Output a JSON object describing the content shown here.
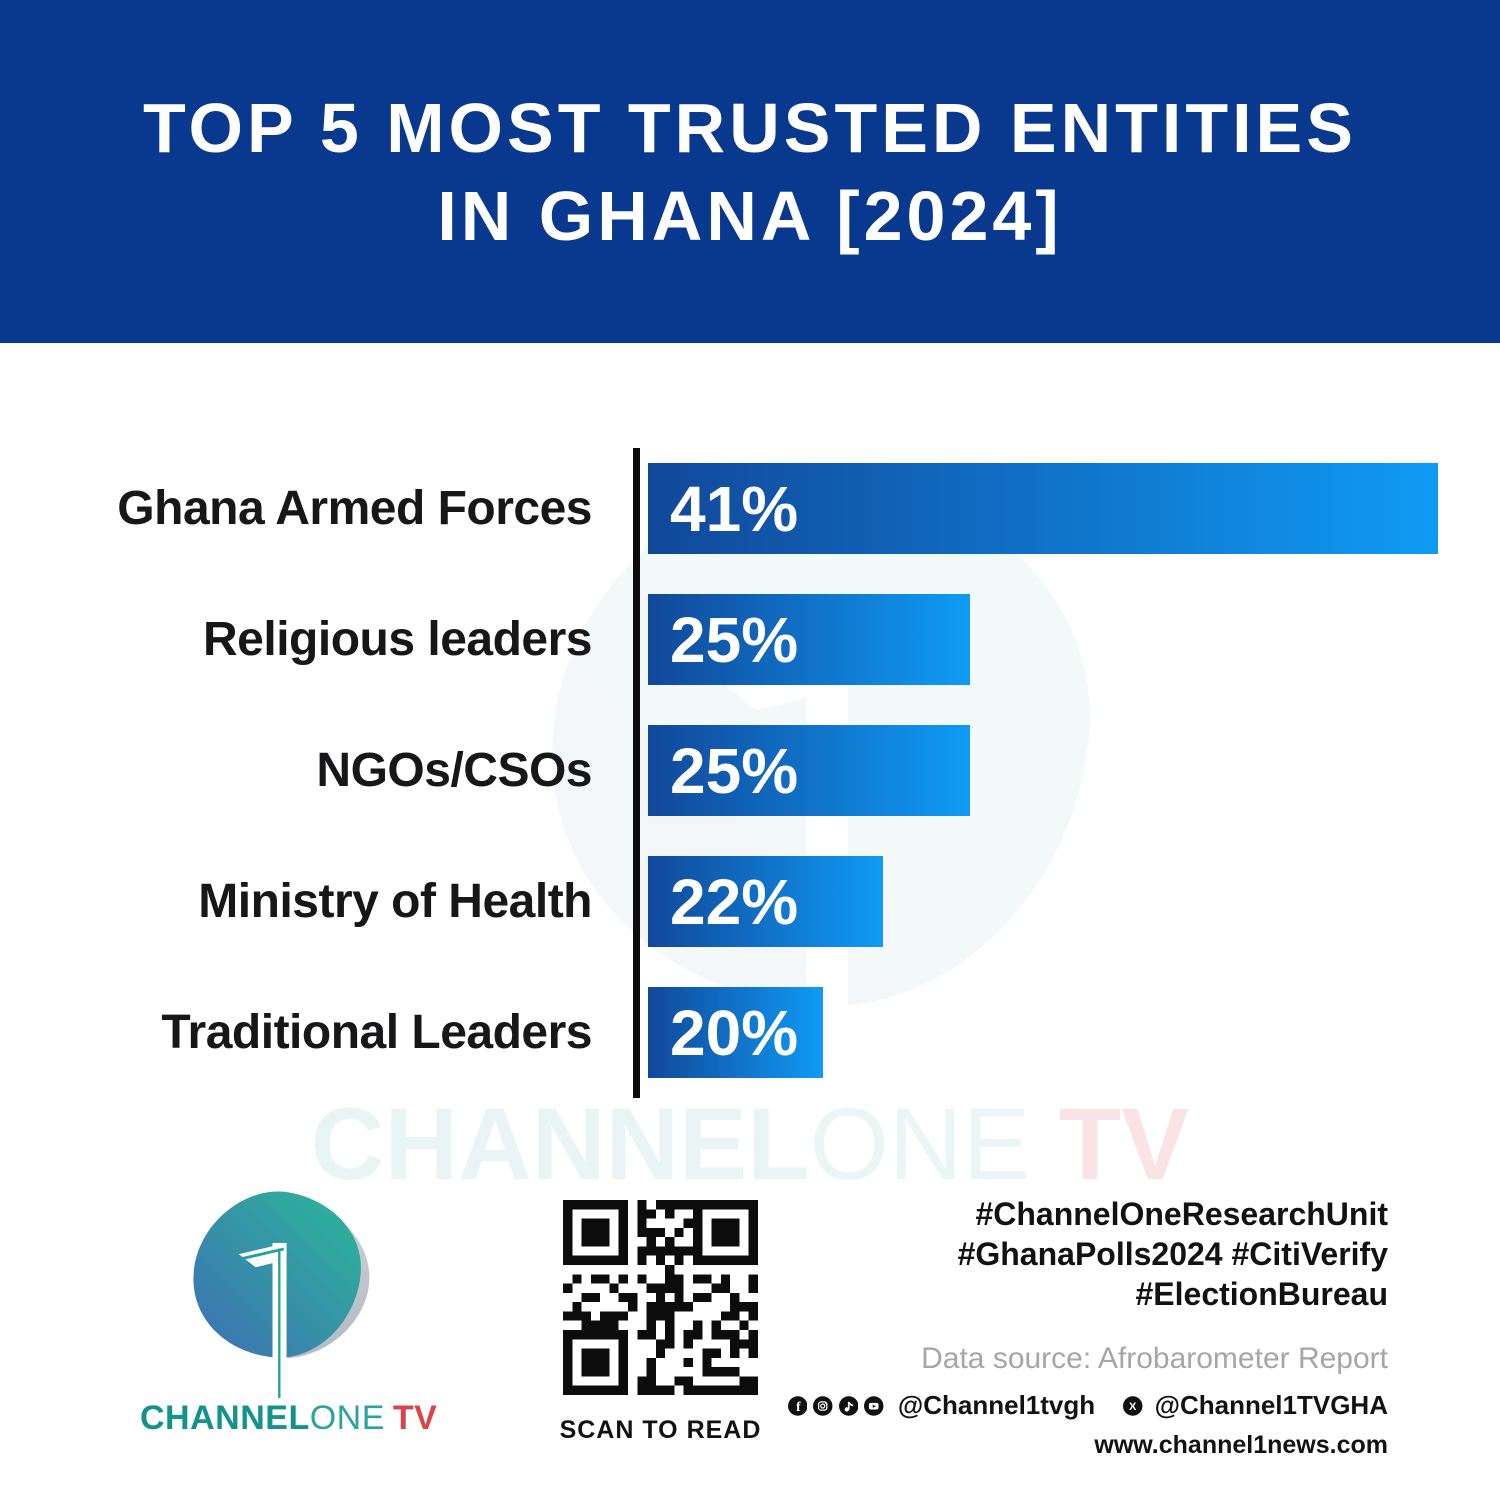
{
  "header": {
    "title_line1": "TOP 5 MOST TRUSTED ENTITIES",
    "title_line2": "IN GHANA [2024]"
  },
  "chart_data": {
    "type": "bar",
    "orientation": "horizontal",
    "title": "Top 5 Most Trusted Entities in Ghana [2024]",
    "categories": [
      "Ghana Armed Forces",
      "Religious leaders",
      "NGOs/CSOs",
      "Ministry of Health",
      "Traditional Leaders"
    ],
    "values": [
      41,
      25,
      25,
      22,
      20
    ],
    "value_labels": [
      "41%",
      "25%",
      "25%",
      "22%",
      "20%"
    ],
    "unit": "%",
    "bar_display_pct": [
      100,
      40.8,
      40.8,
      29.7,
      22.2
    ],
    "bar_gradient_start": "#11489A",
    "bar_gradient_end": "#0F9BF5",
    "axis_color": "#0C0C0E",
    "label_color": "#17171A",
    "value_label_color": "#FFFFFF",
    "gridlines": false,
    "legend": "none"
  },
  "watermark": {
    "part_channel": "CHANNEL",
    "part_one": "ONE",
    "part_tv": "TV"
  },
  "footer": {
    "logo": {
      "mark": "1",
      "word_channel": "CHANNEL",
      "word_one": "ONE",
      "word_tv": "TV"
    },
    "qr": {
      "caption": "SCAN TO READ"
    },
    "hashtags": [
      "#ChannelOneResearchUnit",
      "#GhanaPolls2024 #CitiVerify",
      "#ElectionBureau"
    ],
    "data_source": "Data source: Afrobarometer Report",
    "social": {
      "icons": [
        "facebook-icon",
        "instagram-icon",
        "tiktok-icon",
        "youtube-icon"
      ],
      "handle_main": "@Channel1tvgh",
      "x_icon": "x-icon",
      "handle_x": "@Channel1TVGHA"
    },
    "website": "www.channel1news.com"
  },
  "colors": {
    "header_bg": "#09398F",
    "bar_start": "#11489A",
    "bar_end": "#0F9BF5",
    "teal": "#14938D",
    "teal_light": "#2AA49E",
    "red": "#D8444A",
    "gray_text": "#A6A6A6"
  }
}
